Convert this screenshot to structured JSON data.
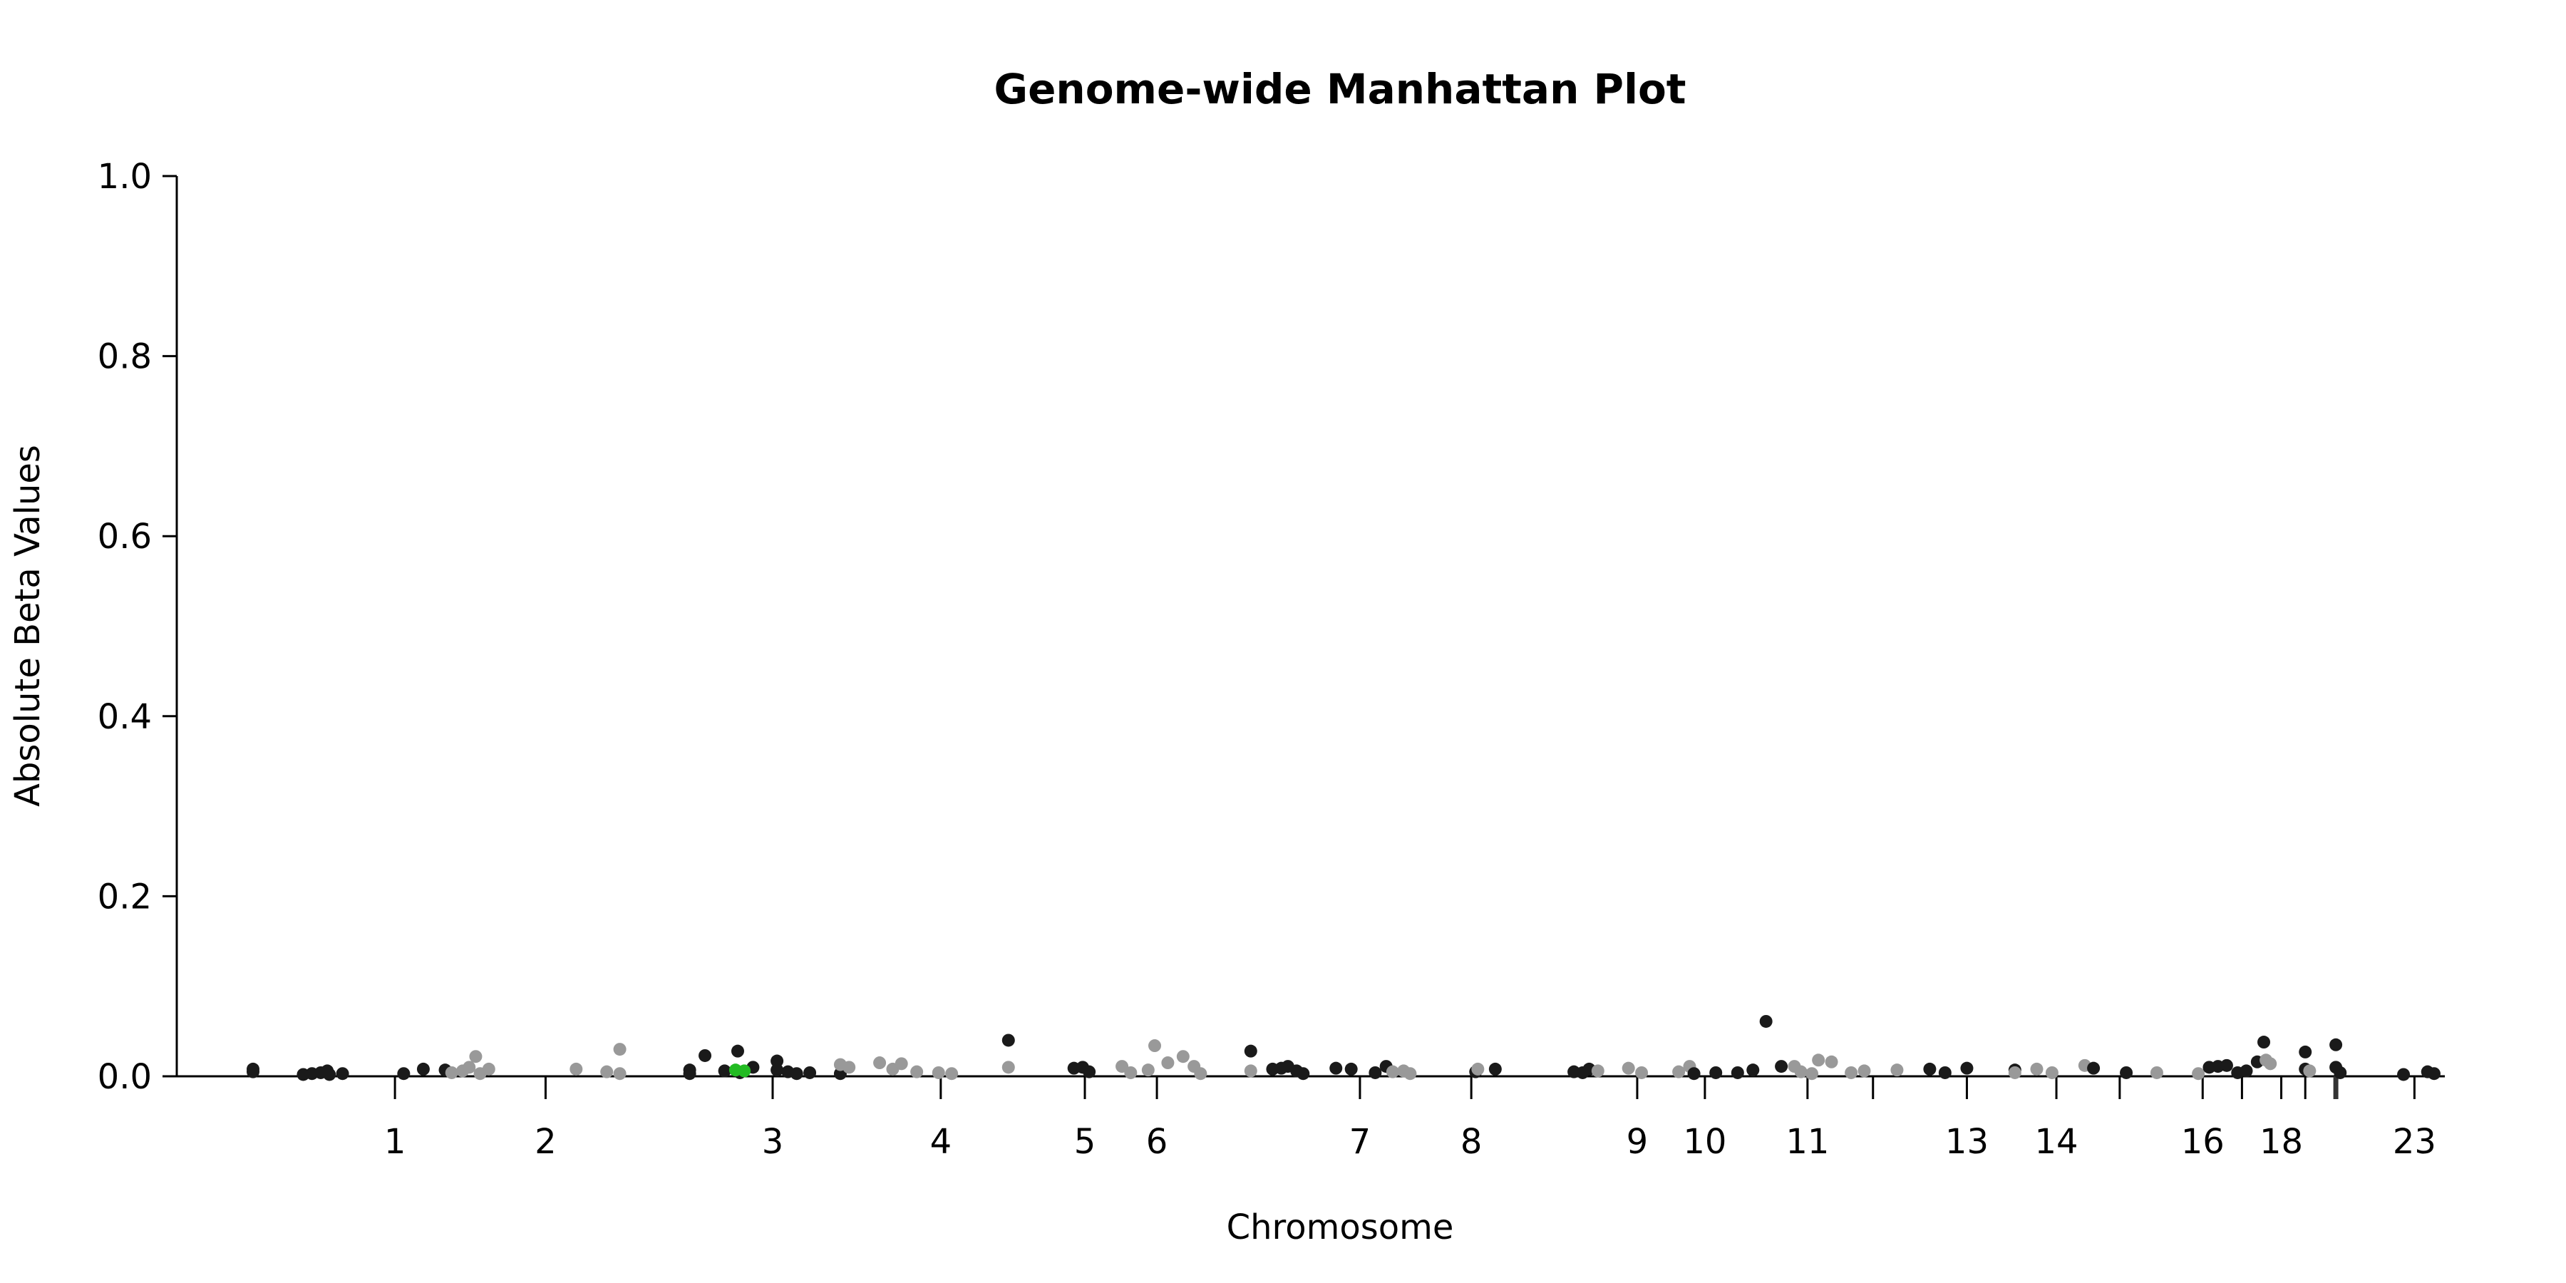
{
  "chart_data": {
    "type": "scatter",
    "title": "Genome-wide Manhattan Plot",
    "xlabel": "Chromosome",
    "ylabel": "Absolute Beta Values",
    "ylim": [
      0,
      1
    ],
    "yticks": [
      "0.0",
      "0.2",
      "0.4",
      "0.6",
      "0.8",
      "1.0"
    ],
    "xticks": [
      {
        "label": "1",
        "x": 0.065
      },
      {
        "label": "2",
        "x": 0.134
      },
      {
        "label": "3",
        "x": 0.238
      },
      {
        "label": "4",
        "x": 0.315
      },
      {
        "label": "5",
        "x": 0.381
      },
      {
        "label": "6",
        "x": 0.414
      },
      {
        "label": "7",
        "x": 0.507
      },
      {
        "label": "8",
        "x": 0.558
      },
      {
        "label": "9",
        "x": 0.634
      },
      {
        "label": "10",
        "x": 0.665
      },
      {
        "label": "11",
        "x": 0.712
      },
      {
        "label": "",
        "x": 0.742
      },
      {
        "label": "13",
        "x": 0.785
      },
      {
        "label": "14",
        "x": 0.826
      },
      {
        "label": "",
        "x": 0.855
      },
      {
        "label": "16",
        "x": 0.893
      },
      {
        "label": "",
        "x": 0.911
      },
      {
        "label": "18",
        "x": 0.929
      },
      {
        "label": "",
        "x": 0.94
      },
      {
        "label": "",
        "x": 0.954
      },
      {
        "label": "23",
        "x": 0.99
      }
    ],
    "colors": {
      "dark": "#1a1a1a",
      "light": "#999999",
      "highlight": "#22bb22"
    },
    "points": [
      {
        "x": 0.0,
        "y": 0.008,
        "c": "dark"
      },
      {
        "x": 0.0,
        "y": 0.005,
        "c": "dark"
      },
      {
        "x": 0.023,
        "y": 0.002,
        "c": "dark"
      },
      {
        "x": 0.027,
        "y": 0.003,
        "c": "dark"
      },
      {
        "x": 0.031,
        "y": 0.004,
        "c": "dark"
      },
      {
        "x": 0.034,
        "y": 0.006,
        "c": "dark"
      },
      {
        "x": 0.035,
        "y": 0.002,
        "c": "dark"
      },
      {
        "x": 0.041,
        "y": 0.003,
        "c": "dark"
      },
      {
        "x": 0.069,
        "y": 0.003,
        "c": "dark"
      },
      {
        "x": 0.078,
        "y": 0.008,
        "c": "dark"
      },
      {
        "x": 0.088,
        "y": 0.007,
        "c": "dark"
      },
      {
        "x": 0.091,
        "y": 0.004,
        "c": "light"
      },
      {
        "x": 0.096,
        "y": 0.006,
        "c": "light"
      },
      {
        "x": 0.099,
        "y": 0.01,
        "c": "light"
      },
      {
        "x": 0.102,
        "y": 0.022,
        "c": "light"
      },
      {
        "x": 0.104,
        "y": 0.003,
        "c": "light"
      },
      {
        "x": 0.108,
        "y": 0.008,
        "c": "light"
      },
      {
        "x": 0.148,
        "y": 0.008,
        "c": "light"
      },
      {
        "x": 0.162,
        "y": 0.005,
        "c": "light"
      },
      {
        "x": 0.168,
        "y": 0.03,
        "c": "light"
      },
      {
        "x": 0.168,
        "y": 0.003,
        "c": "light"
      },
      {
        "x": 0.2,
        "y": 0.007,
        "c": "dark"
      },
      {
        "x": 0.2,
        "y": 0.003,
        "c": "dark"
      },
      {
        "x": 0.207,
        "y": 0.023,
        "c": "dark"
      },
      {
        "x": 0.216,
        "y": 0.006,
        "c": "dark"
      },
      {
        "x": 0.222,
        "y": 0.028,
        "c": "dark"
      },
      {
        "x": 0.223,
        "y": 0.004,
        "c": "dark"
      },
      {
        "x": 0.229,
        "y": 0.01,
        "c": "dark"
      },
      {
        "x": 0.24,
        "y": 0.017,
        "c": "dark"
      },
      {
        "x": 0.24,
        "y": 0.007,
        "c": "dark"
      },
      {
        "x": 0.245,
        "y": 0.005,
        "c": "dark"
      },
      {
        "x": 0.249,
        "y": 0.003,
        "c": "dark"
      },
      {
        "x": 0.255,
        "y": 0.004,
        "c": "dark"
      },
      {
        "x": 0.269,
        "y": 0.003,
        "c": "dark"
      },
      {
        "x": 0.269,
        "y": 0.013,
        "c": "light"
      },
      {
        "x": 0.273,
        "y": 0.01,
        "c": "light"
      },
      {
        "x": 0.287,
        "y": 0.015,
        "c": "light"
      },
      {
        "x": 0.293,
        "y": 0.008,
        "c": "light"
      },
      {
        "x": 0.297,
        "y": 0.014,
        "c": "light"
      },
      {
        "x": 0.304,
        "y": 0.005,
        "c": "light"
      },
      {
        "x": 0.314,
        "y": 0.004,
        "c": "light"
      },
      {
        "x": 0.32,
        "y": 0.003,
        "c": "light"
      },
      {
        "x": 0.346,
        "y": 0.01,
        "c": "light"
      },
      {
        "x": 0.346,
        "y": 0.04,
        "c": "dark"
      },
      {
        "x": 0.376,
        "y": 0.009,
        "c": "dark"
      },
      {
        "x": 0.38,
        "y": 0.01,
        "c": "dark"
      },
      {
        "x": 0.383,
        "y": 0.005,
        "c": "dark"
      },
      {
        "x": 0.398,
        "y": 0.011,
        "c": "light"
      },
      {
        "x": 0.402,
        "y": 0.004,
        "c": "light"
      },
      {
        "x": 0.41,
        "y": 0.007,
        "c": "light"
      },
      {
        "x": 0.413,
        "y": 0.034,
        "c": "light"
      },
      {
        "x": 0.419,
        "y": 0.015,
        "c": "light"
      },
      {
        "x": 0.426,
        "y": 0.022,
        "c": "light"
      },
      {
        "x": 0.431,
        "y": 0.011,
        "c": "light"
      },
      {
        "x": 0.434,
        "y": 0.003,
        "c": "light"
      },
      {
        "x": 0.457,
        "y": 0.028,
        "c": "dark"
      },
      {
        "x": 0.457,
        "y": 0.006,
        "c": "light"
      },
      {
        "x": 0.467,
        "y": 0.008,
        "c": "dark"
      },
      {
        "x": 0.471,
        "y": 0.009,
        "c": "dark"
      },
      {
        "x": 0.474,
        "y": 0.011,
        "c": "dark"
      },
      {
        "x": 0.478,
        "y": 0.006,
        "c": "dark"
      },
      {
        "x": 0.481,
        "y": 0.003,
        "c": "dark"
      },
      {
        "x": 0.496,
        "y": 0.009,
        "c": "dark"
      },
      {
        "x": 0.503,
        "y": 0.008,
        "c": "dark"
      },
      {
        "x": 0.514,
        "y": 0.004,
        "c": "dark"
      },
      {
        "x": 0.519,
        "y": 0.011,
        "c": "dark"
      },
      {
        "x": 0.522,
        "y": 0.005,
        "c": "light"
      },
      {
        "x": 0.527,
        "y": 0.006,
        "c": "light"
      },
      {
        "x": 0.53,
        "y": 0.003,
        "c": "light"
      },
      {
        "x": 0.56,
        "y": 0.005,
        "c": "dark"
      },
      {
        "x": 0.561,
        "y": 0.008,
        "c": "light"
      },
      {
        "x": 0.569,
        "y": 0.008,
        "c": "dark"
      },
      {
        "x": 0.605,
        "y": 0.005,
        "c": "dark"
      },
      {
        "x": 0.609,
        "y": 0.004,
        "c": "dark"
      },
      {
        "x": 0.612,
        "y": 0.008,
        "c": "dark"
      },
      {
        "x": 0.616,
        "y": 0.006,
        "c": "light"
      },
      {
        "x": 0.63,
        "y": 0.009,
        "c": "light"
      },
      {
        "x": 0.636,
        "y": 0.004,
        "c": "light"
      },
      {
        "x": 0.653,
        "y": 0.005,
        "c": "light"
      },
      {
        "x": 0.658,
        "y": 0.011,
        "c": "light"
      },
      {
        "x": 0.66,
        "y": 0.003,
        "c": "dark"
      },
      {
        "x": 0.67,
        "y": 0.004,
        "c": "dark"
      },
      {
        "x": 0.68,
        "y": 0.004,
        "c": "dark"
      },
      {
        "x": 0.687,
        "y": 0.007,
        "c": "dark"
      },
      {
        "x": 0.693,
        "y": 0.061,
        "c": "dark"
      },
      {
        "x": 0.7,
        "y": 0.011,
        "c": "dark"
      },
      {
        "x": 0.706,
        "y": 0.011,
        "c": "light"
      },
      {
        "x": 0.709,
        "y": 0.005,
        "c": "light"
      },
      {
        "x": 0.714,
        "y": 0.003,
        "c": "light"
      },
      {
        "x": 0.717,
        "y": 0.018,
        "c": "light"
      },
      {
        "x": 0.723,
        "y": 0.016,
        "c": "light"
      },
      {
        "x": 0.732,
        "y": 0.004,
        "c": "light"
      },
      {
        "x": 0.738,
        "y": 0.006,
        "c": "light"
      },
      {
        "x": 0.753,
        "y": 0.007,
        "c": "light"
      },
      {
        "x": 0.768,
        "y": 0.008,
        "c": "dark"
      },
      {
        "x": 0.775,
        "y": 0.004,
        "c": "dark"
      },
      {
        "x": 0.785,
        "y": 0.009,
        "c": "dark"
      },
      {
        "x": 0.807,
        "y": 0.007,
        "c": "dark"
      },
      {
        "x": 0.807,
        "y": 0.004,
        "c": "light"
      },
      {
        "x": 0.817,
        "y": 0.008,
        "c": "light"
      },
      {
        "x": 0.824,
        "y": 0.004,
        "c": "light"
      },
      {
        "x": 0.839,
        "y": 0.012,
        "c": "light"
      },
      {
        "x": 0.843,
        "y": 0.009,
        "c": "dark"
      },
      {
        "x": 0.858,
        "y": 0.004,
        "c": "dark"
      },
      {
        "x": 0.872,
        "y": 0.004,
        "c": "light"
      },
      {
        "x": 0.891,
        "y": 0.003,
        "c": "light"
      },
      {
        "x": 0.896,
        "y": 0.01,
        "c": "dark"
      },
      {
        "x": 0.9,
        "y": 0.011,
        "c": "dark"
      },
      {
        "x": 0.904,
        "y": 0.012,
        "c": "dark"
      },
      {
        "x": 0.909,
        "y": 0.004,
        "c": "dark"
      },
      {
        "x": 0.913,
        "y": 0.006,
        "c": "dark"
      },
      {
        "x": 0.918,
        "y": 0.016,
        "c": "dark"
      },
      {
        "x": 0.921,
        "y": 0.038,
        "c": "dark"
      },
      {
        "x": 0.922,
        "y": 0.018,
        "c": "light"
      },
      {
        "x": 0.924,
        "y": 0.014,
        "c": "light"
      },
      {
        "x": 0.94,
        "y": 0.027,
        "c": "dark"
      },
      {
        "x": 0.94,
        "y": 0.008,
        "c": "dark"
      },
      {
        "x": 0.942,
        "y": 0.006,
        "c": "light"
      },
      {
        "x": 0.954,
        "y": 0.035,
        "c": "dark"
      },
      {
        "x": 0.954,
        "y": 0.01,
        "c": "dark"
      },
      {
        "x": 0.956,
        "y": 0.004,
        "c": "dark"
      },
      {
        "x": 0.985,
        "y": 0.002,
        "c": "dark"
      },
      {
        "x": 0.996,
        "y": 0.005,
        "c": "dark"
      },
      {
        "x": 0.999,
        "y": 0.003,
        "c": "dark"
      },
      {
        "x": 0.221,
        "y": 0.007,
        "c": "highlight"
      },
      {
        "x": 0.225,
        "y": 0.006,
        "c": "highlight"
      }
    ]
  }
}
